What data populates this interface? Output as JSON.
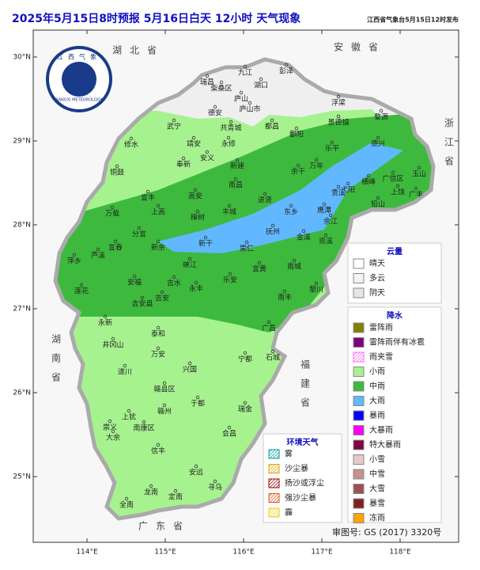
{
  "header": {
    "title": "2025年5月15日8时预报 5月16日白天 12小时  天气现象",
    "publisher": "江西省气象台5月15日12时发布"
  },
  "logo": {
    "text": "JIANGXI METEOROLOGY",
    "name": "江西气象"
  },
  "axes": {
    "xticks": [
      {
        "value": 114,
        "label": "114°E"
      },
      {
        "value": 115,
        "label": "115°E"
      },
      {
        "value": 116,
        "label": "116°E"
      },
      {
        "value": 117,
        "label": "117°E"
      },
      {
        "value": 118,
        "label": "118°E"
      }
    ],
    "yticks": [
      {
        "value": 30,
        "label": "30°N"
      },
      {
        "value": 29,
        "label": "29°N"
      },
      {
        "value": 28,
        "label": "28°N"
      },
      {
        "value": 27,
        "label": "27°N"
      },
      {
        "value": 26,
        "label": "26°N"
      },
      {
        "value": 25,
        "label": "25°N"
      }
    ]
  },
  "provinces": [
    "湖北省",
    "安徽省",
    "浙江省",
    "湖南省",
    "福建省",
    "广东省"
  ],
  "places": [
    "九江",
    "湖口",
    "彭泽",
    "瑞昌",
    "柴桑区",
    "庐山",
    "庐山市",
    "德安",
    "共青城",
    "都昌",
    "永修",
    "武宁",
    "修水",
    "铜鼓",
    "靖安",
    "奉新",
    "安义",
    "宜丰",
    "万载",
    "高安",
    "新建",
    "南昌",
    "鄱阳",
    "景德镇",
    "浮梁",
    "婺源",
    "乐平",
    "德兴",
    "万年",
    "余干",
    "玉山",
    "上饶",
    "广丰",
    "广信区",
    "横峰",
    "弋阳",
    "铅山",
    "贵溪",
    "鹰潭",
    "余江",
    "东乡",
    "进贤",
    "抚州",
    "金溪",
    "资溪",
    "南城",
    "崇仁",
    "宜黄",
    "丰城",
    "樟树",
    "新干",
    "峡江",
    "新余",
    "分宜",
    "宜春",
    "萍乡",
    "芦溪",
    "上高",
    "安福",
    "吉水",
    "永丰",
    "乐安",
    "吉安",
    "吉安县",
    "泰和",
    "永新",
    "井冈山",
    "遂川",
    "万安",
    "莲花",
    "南丰",
    "黎川",
    "广昌",
    "宁都",
    "石城",
    "兴国",
    "于都",
    "瑞金",
    "赣县区",
    "赣州",
    "上犹",
    "崇义",
    "南康区",
    "大余",
    "信丰",
    "会昌",
    "安远",
    "寻乌",
    "龙南",
    "定南",
    "全南"
  ],
  "legend_cloud": {
    "title": "云量",
    "items": [
      {
        "label": "晴天",
        "color": "#ffffff"
      },
      {
        "label": "多云",
        "color": "#f4f4f4"
      },
      {
        "label": "阴天",
        "color": "#e6e6e6"
      }
    ]
  },
  "legend_precip": {
    "title": "降水",
    "items": [
      {
        "label": "雷阵雨",
        "color": "#808000"
      },
      {
        "label": "雷阵雨伴有冰雹",
        "color": "#800080"
      },
      {
        "label": "雨夹雪",
        "color": "#ff66ff",
        "hatch": true
      },
      {
        "label": "小雨",
        "color": "#a6f28f"
      },
      {
        "label": "中雨",
        "color": "#3dba3d"
      },
      {
        "label": "大雨",
        "color": "#61b8ff"
      },
      {
        "label": "暴雨",
        "color": "#0000fe"
      },
      {
        "label": "大暴雨",
        "color": "#fa00fa"
      },
      {
        "label": "特大暴雨",
        "color": "#800040"
      },
      {
        "label": "小雪",
        "color": "#e8c8c8"
      },
      {
        "label": "中雪",
        "color": "#c89090"
      },
      {
        "label": "大雪",
        "color": "#a05050"
      },
      {
        "label": "暴雪",
        "color": "#802020"
      },
      {
        "label": "冻雨",
        "color": "#ffa500"
      }
    ]
  },
  "legend_env": {
    "title": "环境天气",
    "items": [
      {
        "label": "雾",
        "color": "#009999",
        "hatch": true
      },
      {
        "label": "沙尘暴",
        "color": "#e6a000",
        "hatch": true
      },
      {
        "label": "扬沙或浮尘",
        "color": "#a00000",
        "hatch": true
      },
      {
        "label": "强沙尘暴",
        "color": "#e05010",
        "hatch": true
      },
      {
        "label": "霾",
        "color": "#e6d000",
        "hatch": true
      }
    ]
  },
  "review_no": "审图号: GS (2017) 3320号"
}
